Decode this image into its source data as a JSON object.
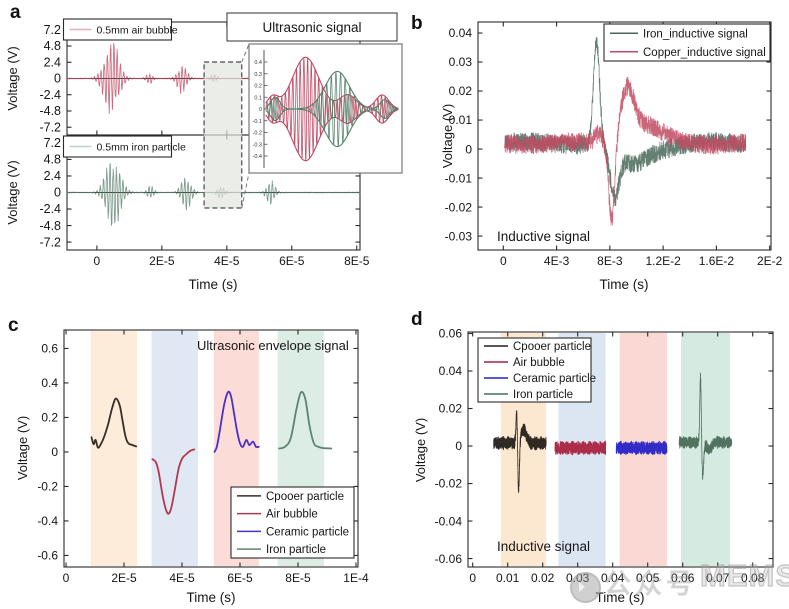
{
  "figure": {
    "panel_labels": {
      "a": "a",
      "b": "b",
      "c": "c",
      "d": "d"
    },
    "watermark": {
      "icon": "wechat-badge-icon",
      "text_cn": "公众号",
      "text_en": "MEMS"
    }
  },
  "chart_data": [
    {
      "id": "a",
      "type": "line",
      "xlabel": "Time (s)",
      "ylabel": "Voltage (V)",
      "x_ticks": [
        {
          "v": 0,
          "label": "0"
        },
        {
          "v": 2e-05,
          "label": "2E-5"
        },
        {
          "v": 4e-05,
          "label": "4E-5"
        },
        {
          "v": 6e-05,
          "label": "6E-5"
        },
        {
          "v": 8e-05,
          "label": "8E-5"
        }
      ],
      "xlim": [
        -9.2e-06,
        8.1e-05
      ],
      "carrier_period": 1e-06,
      "subplots": [
        {
          "name": "air-bubble",
          "legend_label": "0.5mm air bubble",
          "color": "#c04760",
          "legend_swatch_color": "#e8aab6",
          "ylim": [
            -8.35,
            8.35
          ],
          "y_ticks": [
            {
              "v": 7.2,
              "label": "7.2"
            },
            {
              "v": 4.8,
              "label": "4.8"
            },
            {
              "v": 2.4,
              "label": "2.4"
            },
            {
              "v": 0,
              "label": "0"
            },
            {
              "v": -2.4,
              "label": "-2.4"
            },
            {
              "v": -4.8,
              "label": "-4.8"
            },
            {
              "v": -7.2,
              "label": "-7.2"
            }
          ],
          "bursts": [
            {
              "t": 4.5e-06,
              "w": 3e-06,
              "a": 5.3
            },
            {
              "t": 1.62e-05,
              "w": 1.3e-06,
              "a": 0.8
            },
            {
              "t": 2.62e-05,
              "w": 1.9e-06,
              "a": 2.1
            },
            {
              "t": 3.6e-05,
              "w": 1.3e-06,
              "a": 0.55
            }
          ]
        },
        {
          "name": "iron-particle",
          "legend_label": "0.5mm iron particle",
          "color": "#5d8270",
          "legend_swatch_color": "#bdd2c5",
          "ylim": [
            -8.35,
            8.35
          ],
          "y_ticks": [
            {
              "v": 7.2,
              "label": "7.2"
            },
            {
              "v": 4.8,
              "label": "4.8"
            },
            {
              "v": 2.4,
              "label": "2.4"
            },
            {
              "v": 0,
              "label": "0"
            },
            {
              "v": -2.4,
              "label": "-2.4"
            },
            {
              "v": -4.8,
              "label": "-4.8"
            },
            {
              "v": -7.2,
              "label": "-7.2"
            }
          ],
          "bursts": [
            {
              "t": 5e-06,
              "w": 3e-06,
              "a": 5.2
            },
            {
              "t": 1.65e-05,
              "w": 1.3e-06,
              "a": 0.95
            },
            {
              "t": 2.75e-05,
              "w": 2e-06,
              "a": 2.4
            },
            {
              "t": 3.82e-05,
              "w": 1.5e-06,
              "a": 0.85
            },
            {
              "t": 5.35e-05,
              "w": 1.7e-06,
              "a": 1.75
            }
          ]
        }
      ],
      "highlight_region": {
        "x0": 3.3e-05,
        "x1": 4.46e-05
      },
      "inset": {
        "title": "Ultrasonic signal",
        "y_ticks": [
          {
            "v": 0.4,
            "label": "0.4"
          },
          {
            "v": 0.3,
            "label": "0.3"
          },
          {
            "v": 0.2,
            "label": "0.2"
          },
          {
            "v": 0.1,
            "label": "0.1"
          },
          {
            "v": 0,
            "label": "0"
          },
          {
            "v": -0.1,
            "label": "-0.1"
          },
          {
            "v": -0.2,
            "label": "-0.2"
          },
          {
            "v": -0.3,
            "label": "-0.3"
          },
          {
            "v": -0.4,
            "label": "-0.4"
          }
        ],
        "series": [
          {
            "name": "air-bubble",
            "color": "#c04760",
            "carrier_period": 0.028,
            "bursts": [
              {
                "c": 0.05,
                "w": 0.06,
                "a": 0.1
              },
              {
                "c": 0.3,
                "w": 0.14,
                "a": 0.44
              },
              {
                "c": 0.62,
                "w": 0.09,
                "a": 0.12
              },
              {
                "c": 0.88,
                "w": 0.07,
                "a": 0.12
              }
            ]
          },
          {
            "name": "iron-particle",
            "color": "#55806b",
            "carrier_period": 0.035,
            "bursts": [
              {
                "c": 0.07,
                "w": 0.05,
                "a": 0.1
              },
              {
                "c": 0.54,
                "w": 0.13,
                "a": 0.32
              },
              {
                "c": 0.9,
                "w": 0.05,
                "a": 0.08
              }
            ]
          }
        ]
      }
    },
    {
      "id": "b",
      "type": "line",
      "xlabel": "Time (s)",
      "ylabel": "Voltage (V)",
      "annotation": "Inductive signal",
      "x_ticks": [
        {
          "v": 0,
          "label": "0"
        },
        {
          "v": 0.004,
          "label": "4E-3"
        },
        {
          "v": 0.008,
          "label": "8E-3"
        },
        {
          "v": 0.012,
          "label": "1.2E-2"
        },
        {
          "v": 0.016,
          "label": "1.6E-2"
        },
        {
          "v": 0.02,
          "label": "2E-2"
        }
      ],
      "y_ticks": [
        {
          "v": 0.04,
          "label": "0.04"
        },
        {
          "v": 0.03,
          "label": "0.03"
        },
        {
          "v": 0.02,
          "label": "0.02"
        },
        {
          "v": 0.01,
          "label": "0.01"
        },
        {
          "v": 0,
          "label": "0"
        },
        {
          "v": -0.01,
          "label": "-0.01"
        },
        {
          "v": -0.02,
          "label": "-0.02"
        },
        {
          "v": -0.03,
          "label": "-0.03"
        }
      ],
      "xlim": [
        -0.0019,
        0.0201
      ],
      "ylim": [
        -0.0348,
        0.0438
      ],
      "series": [
        {
          "name": "Iron_inductive signal",
          "color": "#49695a",
          "baseline": 0.002,
          "noise_amp": 0.0032,
          "t_start": 0.0001,
          "t_end": 0.0182,
          "pulses": [
            {
              "t": 0.007,
              "w": 0.00032,
              "a": 0.0355
            },
            {
              "t": 0.00835,
              "w": 0.0005,
              "a": -0.0165
            },
            {
              "t": 0.0096,
              "w": 0.0012,
              "a": -0.005
            },
            {
              "t": 0.0105,
              "w": 0.002,
              "a": -0.003
            }
          ]
        },
        {
          "name": "Copper_inductive signal",
          "color": "#c24a62",
          "baseline": 0.002,
          "noise_amp": 0.0032,
          "t_start": 0.0001,
          "t_end": 0.0182,
          "pulses": [
            {
              "t": 0.00715,
              "w": 0.0004,
              "a": 0.003
            },
            {
              "t": 0.00815,
              "w": 0.00032,
              "a": -0.0285
            },
            {
              "t": 0.0093,
              "w": 0.0007,
              "a": 0.016
            },
            {
              "t": 0.0105,
              "w": 0.0018,
              "a": 0.0065
            }
          ]
        }
      ]
    },
    {
      "id": "c",
      "type": "line",
      "xlabel": "Time (s)",
      "ylabel": "Voltage (V)",
      "annotation": "Ultrasonic envelope signal",
      "x_ticks": [
        {
          "v": 0,
          "label": "0"
        },
        {
          "v": 2e-05,
          "label": "2E-5"
        },
        {
          "v": 4e-05,
          "label": "4E-5"
        },
        {
          "v": 6e-05,
          "label": "6E-5"
        },
        {
          "v": 8e-05,
          "label": "8E-5"
        },
        {
          "v": 0.0001,
          "label": "1E-4"
        }
      ],
      "y_ticks": [
        {
          "v": 0.6,
          "label": "0.6"
        },
        {
          "v": 0.4,
          "label": "0.4"
        },
        {
          "v": 0.2,
          "label": "0.2"
        },
        {
          "v": 0,
          "label": "0"
        },
        {
          "v": -0.2,
          "label": "-0.2"
        },
        {
          "v": -0.4,
          "label": "-0.4"
        },
        {
          "v": -0.6,
          "label": "-0.6"
        }
      ],
      "xlim": [
        -7e-07,
        0.0001007
      ],
      "ylim": [
        -0.667,
        0.707
      ],
      "bands": [
        {
          "x0": 8.5e-06,
          "x1": 2.45e-05,
          "color": "#fcecd9"
        },
        {
          "x0": 2.95e-05,
          "x1": 4.55e-05,
          "color": "#dfe8f3"
        },
        {
          "x0": 5.1e-05,
          "x1": 6.65e-05,
          "color": "#fbdcd7"
        },
        {
          "x0": 7.3e-05,
          "x1": 8.9e-05,
          "color": "#dcede5"
        }
      ],
      "series": [
        {
          "name": "Cpooer particle",
          "color": "#352e28",
          "points": [
            [
              8.8e-06,
              0.085
            ],
            [
              9.5e-06,
              0.045
            ],
            [
              1.02e-05,
              0.07
            ],
            [
              1.1e-05,
              0.025
            ],
            [
              1.2e-05,
              0.045
            ],
            [
              1.32e-05,
              0.09
            ],
            [
              1.45e-05,
              0.16
            ],
            [
              1.6e-05,
              0.26
            ],
            [
              1.72e-05,
              0.31
            ],
            [
              1.85e-05,
              0.27
            ],
            [
              1.95e-05,
              0.18
            ],
            [
              2.05e-05,
              0.09
            ],
            [
              2.15e-05,
              0.05
            ],
            [
              2.3e-05,
              0.04
            ],
            [
              2.42e-05,
              0.032
            ]
          ]
        },
        {
          "name": "Air bubble",
          "color": "#b23750",
          "points": [
            [
              2.98e-05,
              -0.042
            ],
            [
              3.1e-05,
              -0.06
            ],
            [
              3.2e-05,
              -0.12
            ],
            [
              3.35e-05,
              -0.27
            ],
            [
              3.5e-05,
              -0.355
            ],
            [
              3.62e-05,
              -0.33
            ],
            [
              3.75e-05,
              -0.22
            ],
            [
              3.88e-05,
              -0.1
            ],
            [
              4e-05,
              -0.04
            ],
            [
              4.15e-05,
              -0.012
            ],
            [
              4.3e-05,
              0.008
            ],
            [
              4.42e-05,
              0.015
            ]
          ]
        },
        {
          "name": "Ceramic particle",
          "color": "#4c30c4",
          "points": [
            [
              5.12e-05,
              0.0
            ],
            [
              5.2e-05,
              0.03
            ],
            [
              5.3e-05,
              0.12
            ],
            [
              5.45e-05,
              0.27
            ],
            [
              5.58e-05,
              0.345
            ],
            [
              5.68e-05,
              0.33
            ],
            [
              5.78e-05,
              0.24
            ],
            [
              5.9e-05,
              0.12
            ],
            [
              6e-05,
              0.05
            ],
            [
              6.1e-05,
              0.03
            ],
            [
              6.22e-05,
              0.07
            ],
            [
              6.32e-05,
              0.04
            ],
            [
              6.45e-05,
              0.06
            ],
            [
              6.55e-05,
              0.03
            ],
            [
              6.65e-05,
              0.03
            ]
          ]
        },
        {
          "name": "Iron particle",
          "color": "#5e8471",
          "points": [
            [
              7.35e-05,
              0.02
            ],
            [
              7.55e-05,
              0.03
            ],
            [
              7.75e-05,
              0.08
            ],
            [
              7.95e-05,
              0.25
            ],
            [
              8.1e-05,
              0.345
            ],
            [
              8.25e-05,
              0.31
            ],
            [
              8.4e-05,
              0.15
            ],
            [
              8.55e-05,
              0.05
            ],
            [
              8.7e-05,
              0.03
            ],
            [
              8.9e-05,
              0.022
            ],
            [
              9.15e-05,
              0.02
            ]
          ]
        }
      ]
    },
    {
      "id": "d",
      "type": "line",
      "xlabel": "Time (s)",
      "ylabel": "Voltage (V)",
      "annotation": "Inductive signal",
      "x_ticks": [
        {
          "v": 0,
          "label": "0"
        },
        {
          "v": 0.01,
          "label": "0.01"
        },
        {
          "v": 0.02,
          "label": "0.02"
        },
        {
          "v": 0.03,
          "label": "0.03"
        },
        {
          "v": 0.04,
          "label": "0.04"
        },
        {
          "v": 0.05,
          "label": "0.05"
        },
        {
          "v": 0.06,
          "label": "0.06"
        },
        {
          "v": 0.07,
          "label": "0.07"
        },
        {
          "v": 0.08,
          "label": "0.08"
        }
      ],
      "y_ticks": [
        {
          "v": 0.06,
          "label": "0.06"
        },
        {
          "v": 0.04,
          "label": "0.04"
        },
        {
          "v": 0.02,
          "label": "0.02"
        },
        {
          "v": 0,
          "label": "0"
        },
        {
          "v": -0.02,
          "label": "-0.02"
        },
        {
          "v": -0.04,
          "label": "-0.04"
        },
        {
          "v": -0.06,
          "label": "-0.06"
        }
      ],
      "xlim": [
        -0.00134,
        0.0858
      ],
      "ylim": [
        -0.0645,
        0.0608
      ],
      "bands": [
        {
          "x0": 0.008,
          "x1": 0.021,
          "color": "#fce8d0"
        },
        {
          "x0": 0.0245,
          "x1": 0.038,
          "color": "#dce6f2"
        },
        {
          "x0": 0.042,
          "x1": 0.0555,
          "color": "#fad8d4"
        },
        {
          "x0": 0.0595,
          "x1": 0.0735,
          "color": "#d5eae0"
        }
      ],
      "series": [
        {
          "name": "Cpooer particle",
          "color": "#251f1a",
          "t_start": 0.006,
          "t_end": 0.021,
          "baseline": 0.0015,
          "noise_amp": 0.0045,
          "pulses": [
            {
              "t": 0.0126,
              "w": 0.0003,
              "a": 0.018
            },
            {
              "t": 0.0131,
              "w": 0.00035,
              "a": -0.027
            },
            {
              "t": 0.0145,
              "w": 0.0012,
              "a": 0.007
            }
          ]
        },
        {
          "name": "Air bubble",
          "color": "#a82340",
          "t_start": 0.0235,
          "t_end": 0.038,
          "baseline": -0.001,
          "noise_amp": 0.0045,
          "pulses": []
        },
        {
          "name": "Ceramic particle",
          "color": "#2722c6",
          "t_start": 0.041,
          "t_end": 0.0555,
          "baseline": -0.001,
          "noise_amp": 0.0045,
          "pulses": []
        },
        {
          "name": "Iron particle",
          "color": "#4b6c59",
          "t_start": 0.059,
          "t_end": 0.074,
          "baseline": 0.002,
          "noise_amp": 0.004,
          "pulses": [
            {
              "t": 0.0651,
              "w": 0.0003,
              "a": 0.036
            },
            {
              "t": 0.0657,
              "w": 0.0004,
              "a": -0.018
            },
            {
              "t": 0.0675,
              "w": 0.001,
              "a": -0.004
            }
          ]
        }
      ]
    }
  ]
}
